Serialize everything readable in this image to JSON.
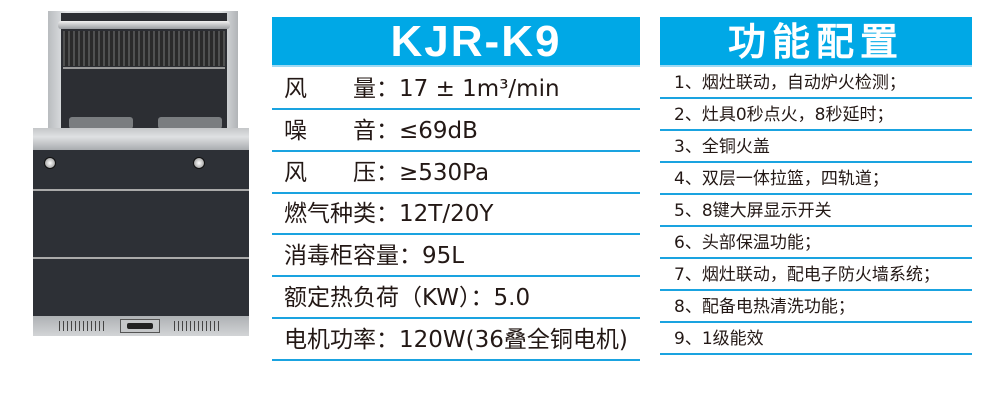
{
  "product": {
    "model": "KJR-K9",
    "image_alt": "integrated stove"
  },
  "specs": [
    {
      "label": "风　　量：",
      "value": "17 ± 1m³/min"
    },
    {
      "label": "噪　　音：",
      "value": "≤69dB"
    },
    {
      "label": "风　　压：",
      "value": "≥530Pa"
    },
    {
      "label": "燃气种类：",
      "value": "12T/20Y"
    },
    {
      "label": "消毒柜容量：",
      "value": "95L"
    },
    {
      "label": "额定热负荷（KW）：",
      "value": "5.0"
    },
    {
      "label": "电机功率：",
      "value": "120W(36叠全铜电机)"
    }
  ],
  "features": {
    "title": "功能配置",
    "items": [
      "1、烟灶联动，自动炉火检测；",
      "2、灶具0秒点火，8秒延时；",
      "3、全铜火盖",
      "4、双层一体拉篮，四轨道；",
      "5、8键大屏显示开关",
      "6、头部保温功能；",
      "7、烟灶联动，配电子防火墙系统；",
      "8、配备电热清洗功能；",
      "9、1级能效"
    ]
  },
  "colors": {
    "accent": "#00a8e6",
    "divider": "#1aa3e0"
  }
}
